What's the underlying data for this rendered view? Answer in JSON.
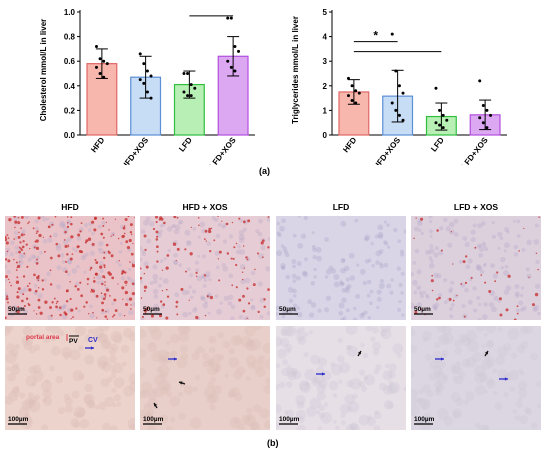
{
  "figure": {
    "panel_a_label": "(a)",
    "panel_b_label": "(b)"
  },
  "chart_data": [
    {
      "type": "bar",
      "ylabel": "Cholesterol mmol/L in liver",
      "categories": [
        "HFD",
        "HFD+XOS",
        "LFD",
        "LFD+XOS"
      ],
      "values": [
        0.58,
        0.47,
        0.41,
        0.64
      ],
      "errors": [
        0.12,
        0.17,
        0.11,
        0.16
      ],
      "points": [
        [
          0.72,
          0.62,
          0.6,
          0.58,
          0.55,
          0.5,
          0.47
        ],
        [
          0.66,
          0.58,
          0.52,
          0.48,
          0.45,
          0.42,
          0.35,
          0.3
        ],
        [
          0.5,
          0.5,
          0.41,
          0.38,
          0.35,
          0.32,
          0.32
        ],
        [
          0.95,
          0.95,
          0.72,
          0.68,
          0.6,
          0.55,
          0.52
        ]
      ],
      "ylim": [
        0,
        1.0
      ],
      "yticks": [
        "0.0",
        "0.2",
        "0.4",
        "0.6",
        "0.8",
        "1.0"
      ],
      "colors": [
        "#f8b7ad",
        "#c7dcf5",
        "#b8efb4",
        "#dda8f2"
      ],
      "edge_colors": [
        "#e06666",
        "#5b8fd6",
        "#2fbf3f",
        "#b24fe0"
      ],
      "significance": [
        {
          "from": "LFD",
          "to": "LFD+XOS",
          "label": ""
        }
      ]
    },
    {
      "type": "bar",
      "ylabel": "Triglycerides mmol/L in liver",
      "categories": [
        "HFD",
        "HFD+XOS",
        "LFD",
        "LFD+XOS"
      ],
      "values": [
        1.75,
        1.58,
        0.75,
        0.82
      ],
      "errors": [
        0.5,
        1.05,
        0.55,
        0.6
      ],
      "points": [
        [
          2.3,
          2.0,
          1.8,
          1.7,
          1.6,
          1.4,
          1.3
        ],
        [
          4.1,
          2.6,
          2.0,
          1.7,
          1.3,
          1.0,
          0.8,
          0.6
        ],
        [
          1.9,
          1.0,
          0.8,
          0.6,
          0.5,
          0.4,
          0.3
        ],
        [
          2.2,
          1.2,
          1.0,
          0.8,
          0.7,
          0.5,
          0.3
        ]
      ],
      "ylim": [
        0,
        5
      ],
      "yticks": [
        "0",
        "1",
        "2",
        "3",
        "4",
        "5"
      ],
      "colors": [
        "#f8b7ad",
        "#c7dcf5",
        "#b8efb4",
        "#dda8f2"
      ],
      "edge_colors": [
        "#e06666",
        "#5b8fd6",
        "#2fbf3f",
        "#b24fe0"
      ],
      "significance": [
        {
          "from": "HFD",
          "to": "HFD+XOS",
          "label": "*"
        },
        {
          "from": "HFD",
          "to": "LFD",
          "label": ""
        }
      ]
    }
  ],
  "histology": {
    "columns": [
      "HFD",
      "HFD + XOS",
      "LFD",
      "LFD + XOS"
    ],
    "scale_top": "50µm",
    "scale_bottom": "100µm",
    "annot_portal": "portal area",
    "annot_pv": "PV",
    "annot_cv": "CV",
    "colors": {
      "stain_red": "#c62828",
      "tissue_pink": "#e8c8cc",
      "tissue_lavender": "#d6d2e3",
      "arrow_blue": "#2a2acb",
      "arrow_black": "#111111",
      "annot_red": "#e0394a"
    },
    "top_tiles": [
      {
        "name": "tile-hfd-top",
        "base": "#e9c3c8",
        "dots": 260
      },
      {
        "name": "tile-hfdxos-top",
        "base": "#e6cdd5",
        "dots": 110
      },
      {
        "name": "tile-lfd-top",
        "base": "#d9d4e6",
        "dots": 0
      },
      {
        "name": "tile-lfdxos-top",
        "base": "#ddd0dd",
        "dots": 45
      }
    ],
    "bottom_tiles": [
      {
        "name": "tile-hfd-bottom",
        "base": "#ecd3cc"
      },
      {
        "name": "tile-hfdxos-bottom",
        "base": "#e8cfc9"
      },
      {
        "name": "tile-lfd-bottom",
        "base": "#e7dfe6"
      },
      {
        "name": "tile-lfdxos-bottom",
        "base": "#dcd6e2"
      }
    ]
  }
}
